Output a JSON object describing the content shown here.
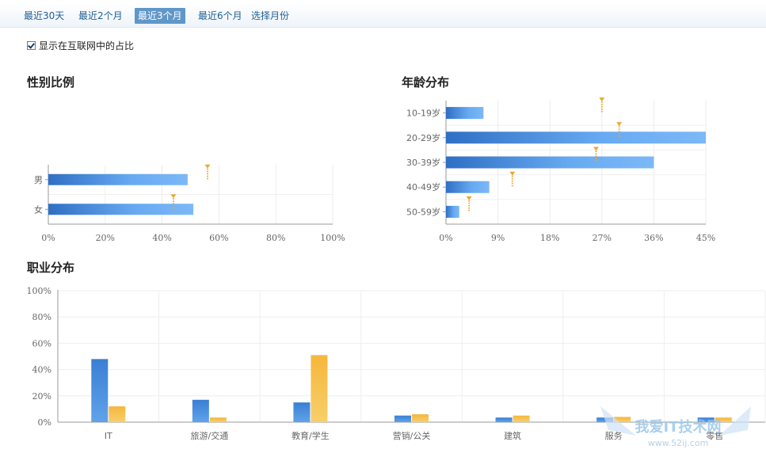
{
  "tabs": [
    {
      "label": "最近30天"
    },
    {
      "label": "最近2个月"
    },
    {
      "label": "最近3个月",
      "active": true
    },
    {
      "label": "最近6个月"
    },
    {
      "label": "选择月份"
    }
  ],
  "checkbox": {
    "label": "显示在互联网中的占比",
    "checked": true
  },
  "colors": {
    "site_bar": "#4f95e0",
    "internet_marker": "#e8a830",
    "occupation_site": "#3d84d6",
    "occupation_internet": "#f2b640"
  },
  "chart_data": [
    {
      "type": "bar",
      "orientation": "horizontal",
      "title": "性别比例",
      "categories": [
        "男",
        "女"
      ],
      "series": [
        {
          "values": [
            49,
            51
          ]
        },
        {
          "values": [
            56,
            44
          ]
        }
      ],
      "xlim": [
        0,
        100
      ],
      "xticks": [
        "0%",
        "20%",
        "40%",
        "60%",
        "80%",
        "100%"
      ]
    },
    {
      "type": "bar",
      "orientation": "horizontal",
      "title": "年龄分布",
      "categories": [
        "10-19岁",
        "20-29岁",
        "30-39岁",
        "40-49岁",
        "50-59岁"
      ],
      "series": [
        {
          "values": [
            6.5,
            45,
            36,
            7.5,
            2.3
          ]
        },
        {
          "values": [
            27,
            30,
            26,
            11.5,
            4
          ]
        }
      ],
      "xlim": [
        0,
        45
      ],
      "xticks": [
        "0%",
        "9%",
        "18%",
        "27%",
        "36%",
        "45%"
      ]
    },
    {
      "type": "bar",
      "title": "职业分布",
      "categories": [
        "IT",
        "旅游/交通",
        "教育/学生",
        "营销/公关",
        "建筑",
        "服务",
        "零售"
      ],
      "series": [
        {
          "values": [
            48,
            17,
            15,
            5,
            3.5,
            3.5,
            3.5
          ]
        },
        {
          "values": [
            12,
            3.5,
            51,
            6,
            5,
            4,
            3.5
          ]
        }
      ],
      "ylim": [
        0,
        100
      ],
      "yticks": [
        "0%",
        "20%",
        "40%",
        "60%",
        "80%",
        "100%"
      ]
    }
  ],
  "watermark": {
    "text": "我爱IT技术网",
    "url": "www.52ij.com"
  }
}
